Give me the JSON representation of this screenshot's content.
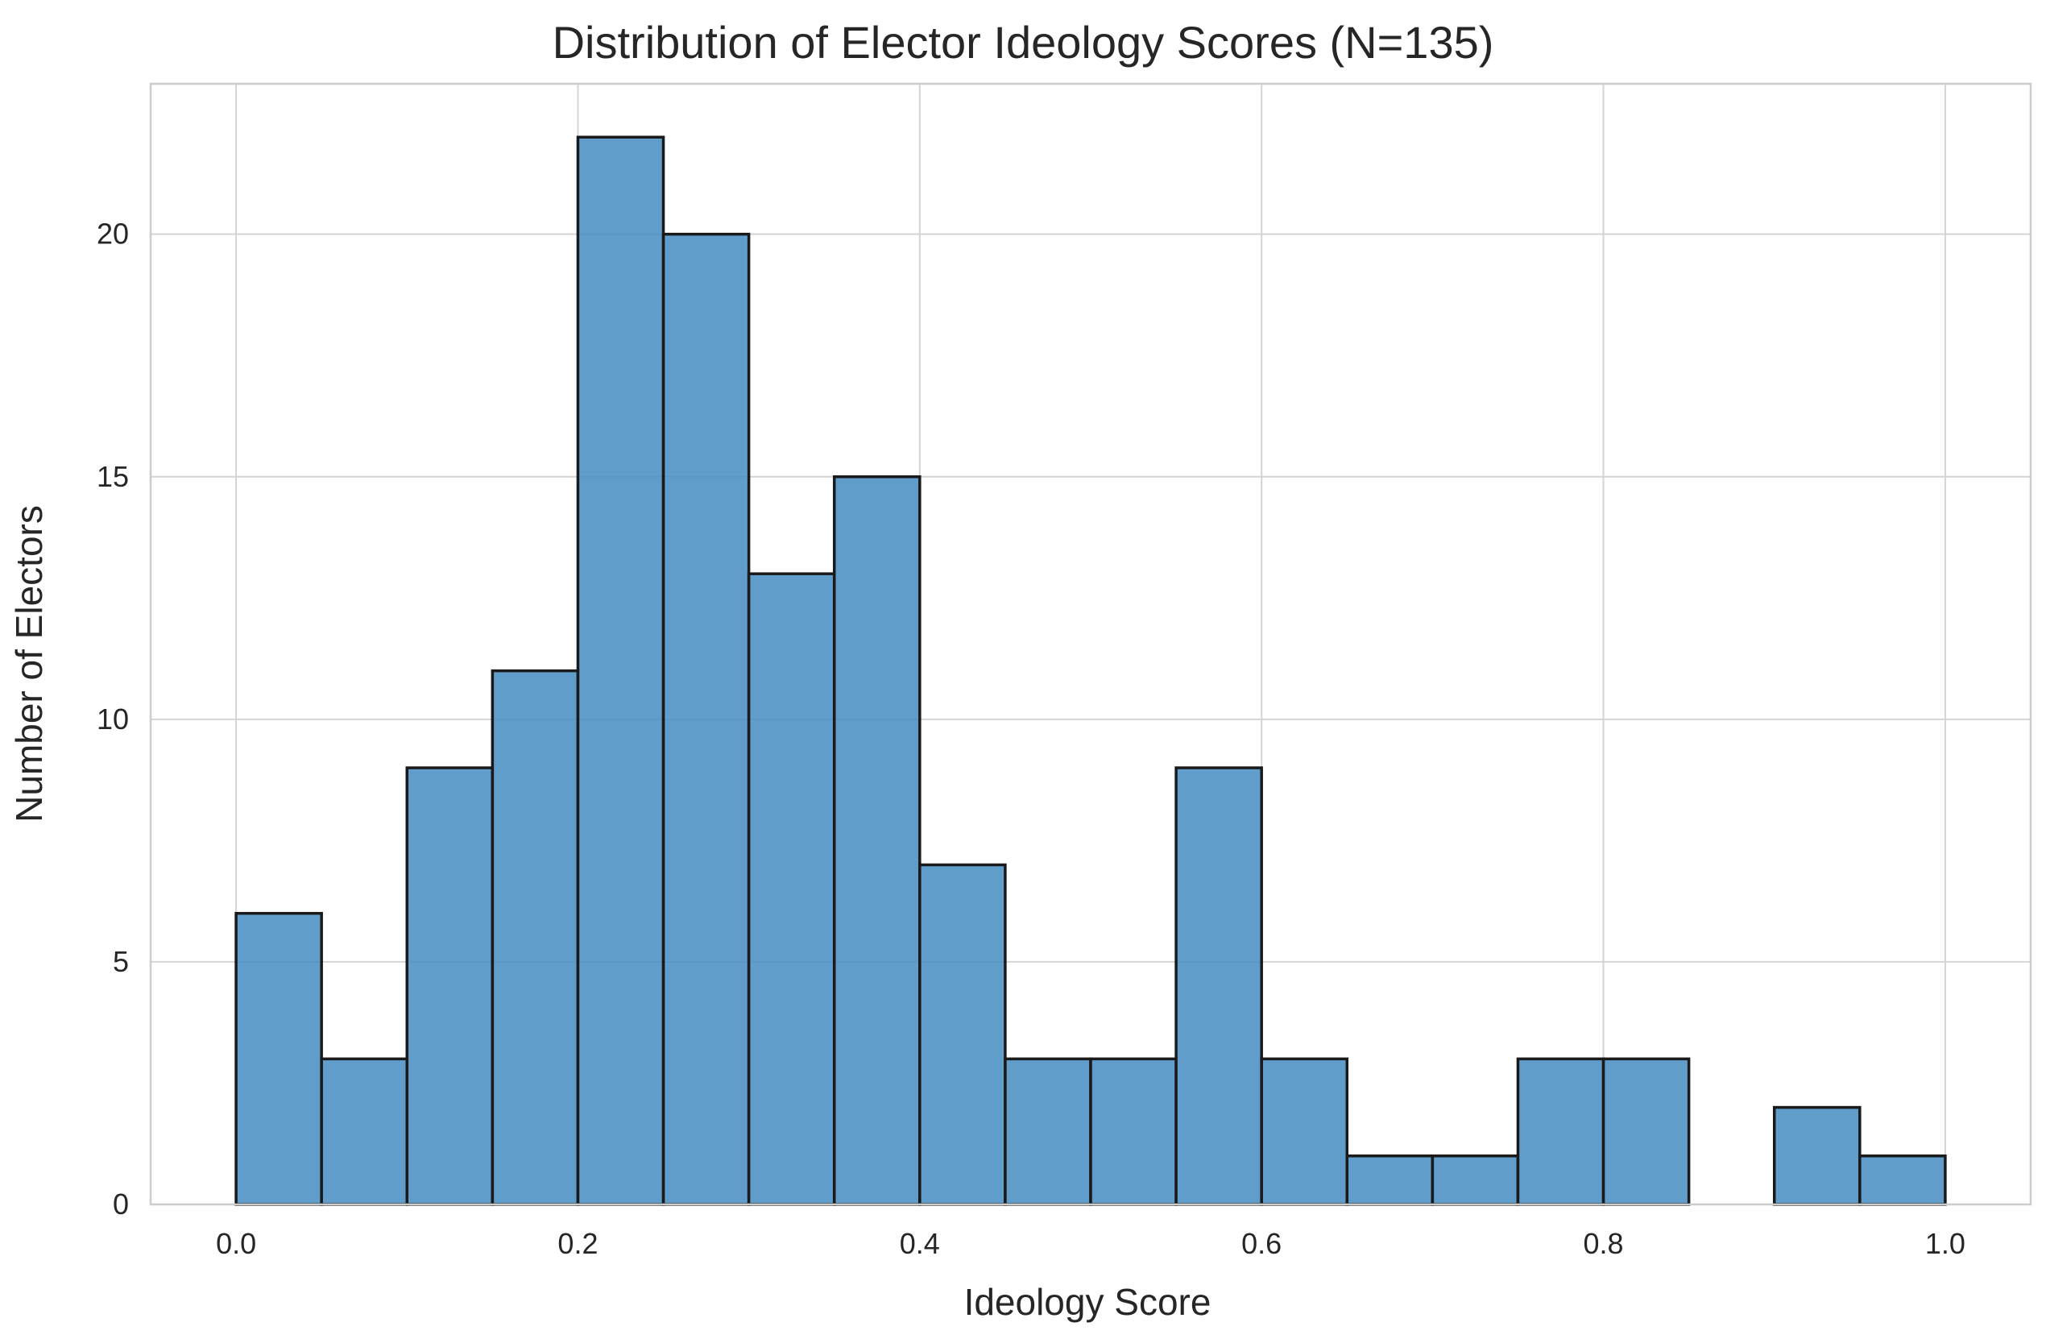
{
  "chart_data": {
    "type": "bar",
    "title": "Distribution of Elector Ideology Scores (N=135)",
    "xlabel": "Ideology Score",
    "ylabel": "Number of Electors",
    "bin_edges": [
      0.0,
      0.05,
      0.1,
      0.15,
      0.2,
      0.25,
      0.3,
      0.35,
      0.4,
      0.45,
      0.5,
      0.55,
      0.6,
      0.65,
      0.7,
      0.75,
      0.8,
      0.85,
      0.9,
      0.95,
      1.0
    ],
    "values": [
      6,
      3,
      9,
      11,
      22,
      20,
      13,
      15,
      7,
      3,
      3,
      9,
      3,
      1,
      1,
      3,
      3,
      0,
      2,
      1
    ],
    "xlim": [
      -0.05,
      1.05
    ],
    "ylim": [
      0,
      23.1
    ],
    "xticks": [
      "0.0",
      "0.2",
      "0.4",
      "0.6",
      "0.8",
      "1.0"
    ],
    "xtick_values": [
      0.0,
      0.2,
      0.4,
      0.6,
      0.8,
      1.0
    ],
    "yticks": [
      "0",
      "5",
      "10",
      "15",
      "20"
    ],
    "ytick_values": [
      0,
      5,
      10,
      15,
      20
    ],
    "grid": true,
    "bar_color": "#4a90c4",
    "edge_color": "#1a1a1a",
    "grid_color": "#d4d4d4",
    "spine_color": "#cccccc"
  }
}
